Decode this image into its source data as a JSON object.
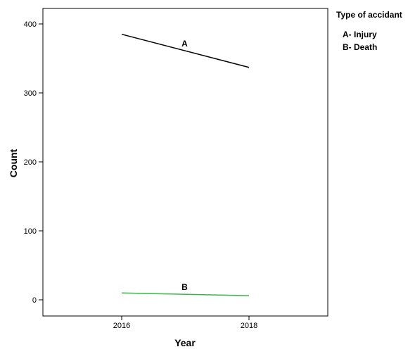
{
  "chart_data": {
    "type": "line",
    "x": [
      "2016",
      "2018"
    ],
    "xlabel": "Year",
    "ylabel": "Count",
    "ylim": [
      0,
      400
    ],
    "yticks": [
      0,
      100,
      200,
      300,
      400
    ],
    "grid": false,
    "legend_position": "right",
    "legend_title": "Type of accidant",
    "legend_entries": [
      "A- Injury",
      "B- Death"
    ],
    "series": [
      {
        "label": "A",
        "color": "#000000",
        "values": [
          385,
          337
        ]
      },
      {
        "label": "B",
        "color": "#3db54a",
        "values": [
          10,
          6
        ]
      }
    ]
  }
}
